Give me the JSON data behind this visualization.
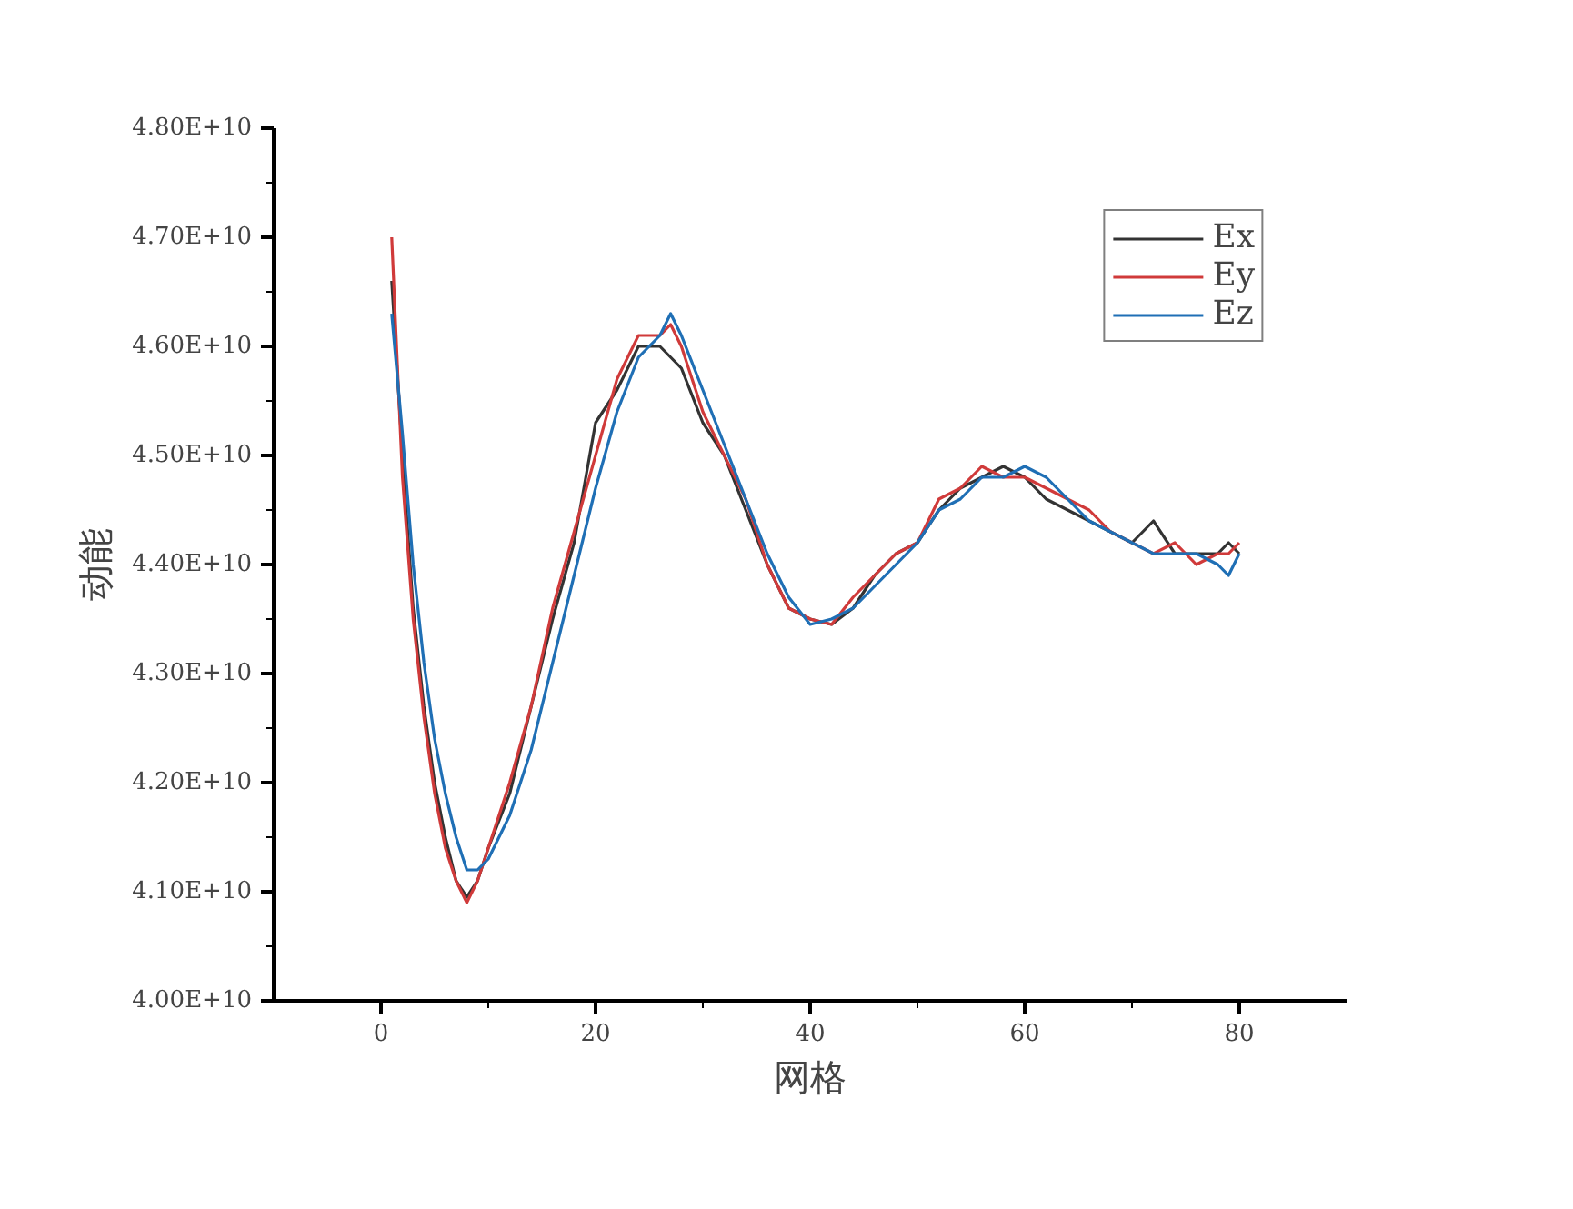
{
  "chart_data": {
    "type": "line",
    "xlabel": "网格",
    "ylabel": "动能",
    "x": [
      1,
      2,
      3,
      4,
      5,
      6,
      7,
      8,
      9,
      10,
      12,
      14,
      16,
      18,
      20,
      22,
      24,
      26,
      27,
      28,
      30,
      32,
      34,
      36,
      38,
      40,
      42,
      44,
      46,
      48,
      50,
      52,
      54,
      56,
      58,
      60,
      62,
      64,
      66,
      68,
      70,
      72,
      74,
      76,
      78,
      79,
      80
    ],
    "series": [
      {
        "name": "Ex",
        "color": "#333333",
        "values": [
          46600000000.0,
          45000000000.0,
          43600000000.0,
          42700000000.0,
          42000000000.0,
          41500000000.0,
          41100000000.0,
          40950000000.0,
          41100000000.0,
          41400000000.0,
          41900000000.0,
          42700000000.0,
          43500000000.0,
          44200000000.0,
          45300000000.0,
          45600000000.0,
          46000000000.0,
          46000000000.0,
          45900000000.0,
          45800000000.0,
          45300000000.0,
          45000000000.0,
          44500000000.0,
          44000000000.0,
          43600000000.0,
          43500000000.0,
          43450000000.0,
          43600000000.0,
          43900000000.0,
          44100000000.0,
          44200000000.0,
          44500000000.0,
          44700000000.0,
          44800000000.0,
          44900000000.0,
          44800000000.0,
          44600000000.0,
          44500000000.0,
          44400000000.0,
          44300000000.0,
          44200000000.0,
          44400000000.0,
          44100000000.0,
          44100000000.0,
          44100000000.0,
          44200000000.0,
          44100000000.0
        ]
      },
      {
        "name": "Ey",
        "color": "#d03a3a",
        "values": [
          47000000000.0,
          44800000000.0,
          43500000000.0,
          42600000000.0,
          41900000000.0,
          41400000000.0,
          41100000000.0,
          40900000000.0,
          41100000000.0,
          41400000000.0,
          42000000000.0,
          42700000000.0,
          43600000000.0,
          44300000000.0,
          45000000000.0,
          45700000000.0,
          46100000000.0,
          46100000000.0,
          46200000000.0,
          46000000000.0,
          45400000000.0,
          45000000000.0,
          44600000000.0,
          44000000000.0,
          43600000000.0,
          43500000000.0,
          43450000000.0,
          43700000000.0,
          43900000000.0,
          44100000000.0,
          44200000000.0,
          44600000000.0,
          44700000000.0,
          44900000000.0,
          44800000000.0,
          44800000000.0,
          44700000000.0,
          44600000000.0,
          44500000000.0,
          44300000000.0,
          44200000000.0,
          44100000000.0,
          44200000000.0,
          44000000000.0,
          44100000000.0,
          44100000000.0,
          44200000000.0
        ]
      },
      {
        "name": "Ez",
        "color": "#1f6fb5",
        "values": [
          46300000000.0,
          45200000000.0,
          44000000000.0,
          43100000000.0,
          42400000000.0,
          41900000000.0,
          41500000000.0,
          41200000000.0,
          41200000000.0,
          41300000000.0,
          41700000000.0,
          42300000000.0,
          43100000000.0,
          43900000000.0,
          44700000000.0,
          45400000000.0,
          45900000000.0,
          46100000000.0,
          46300000000.0,
          46100000000.0,
          45600000000.0,
          45100000000.0,
          44600000000.0,
          44100000000.0,
          43700000000.0,
          43450000000.0,
          43500000000.0,
          43600000000.0,
          43800000000.0,
          44000000000.0,
          44200000000.0,
          44500000000.0,
          44600000000.0,
          44800000000.0,
          44800000000.0,
          44900000000.0,
          44800000000.0,
          44600000000.0,
          44400000000.0,
          44300000000.0,
          44200000000.0,
          44100000000.0,
          44100000000.0,
          44100000000.0,
          44000000000.0,
          43900000000.0,
          44100000000.0
        ]
      }
    ],
    "xlim": [
      -10,
      90
    ],
    "xticks": [
      0,
      20,
      40,
      60,
      80
    ],
    "ylim": [
      40000000000.0,
      48000000000.0
    ],
    "yticks": [
      {
        "value": 40000000000.0,
        "label": "4.00E+10"
      },
      {
        "value": 41000000000.0,
        "label": "4.10E+10"
      },
      {
        "value": 42000000000.0,
        "label": "4.20E+10"
      },
      {
        "value": 43000000000.0,
        "label": "4.30E+10"
      },
      {
        "value": 44000000000.0,
        "label": "4.40E+10"
      },
      {
        "value": 45000000000.0,
        "label": "4.50E+10"
      },
      {
        "value": 46000000000.0,
        "label": "4.60E+10"
      },
      {
        "value": 47000000000.0,
        "label": "4.70E+10"
      },
      {
        "value": 48000000000.0,
        "label": "4.80E+10"
      }
    ],
    "legend": "top right",
    "grid": false,
    "marker": "none",
    "line_style": "solid"
  }
}
